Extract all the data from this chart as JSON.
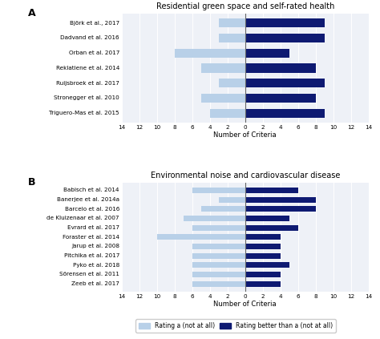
{
  "panel_A": {
    "title": "Residential green space and self-rated health",
    "labels": [
      "Björk et al., 2017",
      "Dadvand et al. 2016",
      "Orban et al. 2017",
      "Reklatiene et al. 2014",
      "Ruijsbroek et al. 2017",
      "Stronegger et al. 2010",
      "Triguero-Mas et al. 2015"
    ],
    "light_blue": [
      3,
      3,
      8,
      5,
      3,
      5,
      4
    ],
    "dark_blue": [
      9,
      9,
      5,
      8,
      9,
      8,
      9
    ]
  },
  "panel_B": {
    "title": "Environmental noise and cardiovascular disease",
    "labels": [
      "Babisch et al. 2014",
      "Banerjee et al. 2014a",
      "Barcelo et al. 2016",
      "de Kluizenaar et al. 2007",
      "Evrard et al. 2017",
      "Foraster et al. 2014",
      "Jarup et al. 2008",
      "Pitchika et al. 2017",
      "Pyko et al. 2018",
      "Sörensen et al. 2011",
      "Zeeb et al. 2017"
    ],
    "light_blue": [
      6,
      3,
      5,
      7,
      6,
      10,
      6,
      6,
      6,
      6,
      6
    ],
    "dark_blue": [
      6,
      8,
      8,
      5,
      6,
      4,
      4,
      4,
      5,
      4,
      4
    ]
  },
  "color_light": "#b8d0e8",
  "color_dark": "#0e1a72",
  "xlabel": "Number of Criteria",
  "legend_light": "Rating a (not at all)",
  "legend_dark": "Rating better than a (not at all)",
  "xlim": 14,
  "bg_color": "#eef1f7"
}
